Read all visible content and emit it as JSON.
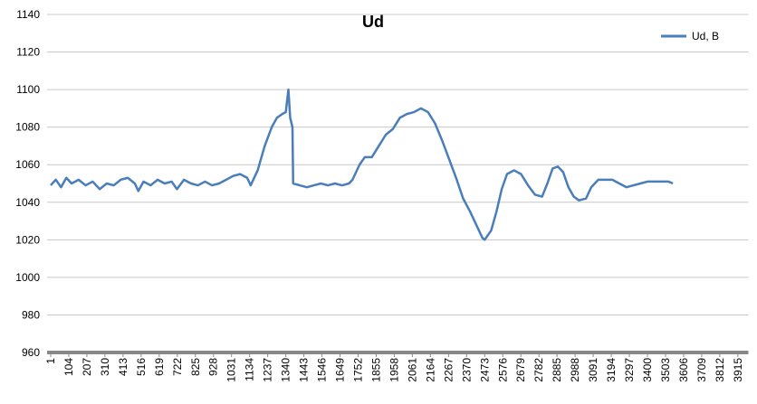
{
  "chart_data": {
    "type": "line",
    "title": "Ud",
    "xlim": [
      1,
      3975
    ],
    "xticks": [
      1,
      104,
      207,
      310,
      413,
      516,
      619,
      722,
      825,
      928,
      1031,
      1134,
      1237,
      1340,
      1443,
      1546,
      1649,
      1752,
      1855,
      1958,
      2061,
      2164,
      2267,
      2370,
      2473,
      2576,
      2679,
      2782,
      2885,
      2988,
      3091,
      3194,
      3297,
      3400,
      3503,
      3606,
      3709,
      3812,
      3915
    ],
    "ylim": [
      960,
      1140
    ],
    "yticks": [
      960,
      980,
      1000,
      1020,
      1040,
      1060,
      1080,
      1100,
      1120,
      1140
    ],
    "grid": true,
    "legend": "top-right",
    "x": [
      1,
      30,
      60,
      90,
      120,
      160,
      200,
      240,
      280,
      320,
      360,
      400,
      440,
      480,
      500,
      530,
      570,
      610,
      650,
      690,
      720,
      760,
      800,
      840,
      880,
      920,
      960,
      1000,
      1040,
      1080,
      1120,
      1140,
      1180,
      1220,
      1260,
      1290,
      1320,
      1340,
      1355,
      1365,
      1378,
      1382,
      1420,
      1460,
      1500,
      1540,
      1580,
      1620,
      1660,
      1700,
      1720,
      1760,
      1790,
      1830,
      1870,
      1910,
      1950,
      1990,
      2030,
      2070,
      2110,
      2150,
      2190,
      2230,
      2270,
      2310,
      2350,
      2390,
      2430,
      2460,
      2473,
      2510,
      2540,
      2570,
      2600,
      2640,
      2680,
      2720,
      2760,
      2800,
      2830,
      2860,
      2890,
      2920,
      2950,
      2980,
      3010,
      3050,
      3080,
      3120,
      3160,
      3200,
      3240,
      3280,
      3320,
      3360,
      3400,
      3440,
      3480,
      3520,
      3545
    ],
    "series": [
      {
        "name": "Ud, B",
        "color": "#4a7ebb",
        "values": [
          1049,
          1052,
          1048,
          1053,
          1050,
          1052,
          1049,
          1051,
          1047,
          1050,
          1049,
          1052,
          1053,
          1050,
          1046,
          1051,
          1049,
          1052,
          1050,
          1051,
          1047,
          1052,
          1050,
          1049,
          1051,
          1049,
          1050,
          1052,
          1054,
          1055,
          1053,
          1049,
          1057,
          1070,
          1080,
          1085,
          1087,
          1088,
          1100,
          1085,
          1080,
          1050,
          1049,
          1048,
          1049,
          1050,
          1049,
          1050,
          1049,
          1050,
          1052,
          1060,
          1064,
          1064,
          1070,
          1076,
          1079,
          1085,
          1087,
          1088,
          1090,
          1088,
          1082,
          1073,
          1063,
          1053,
          1042,
          1035,
          1027,
          1021,
          1020,
          1025,
          1035,
          1047,
          1055,
          1057,
          1055,
          1049,
          1044,
          1043,
          1050,
          1058,
          1059,
          1056,
          1048,
          1043,
          1041,
          1042,
          1048,
          1052,
          1052,
          1052,
          1050,
          1048,
          1049,
          1050,
          1051,
          1051,
          1051,
          1051,
          1050
        ]
      }
    ]
  }
}
